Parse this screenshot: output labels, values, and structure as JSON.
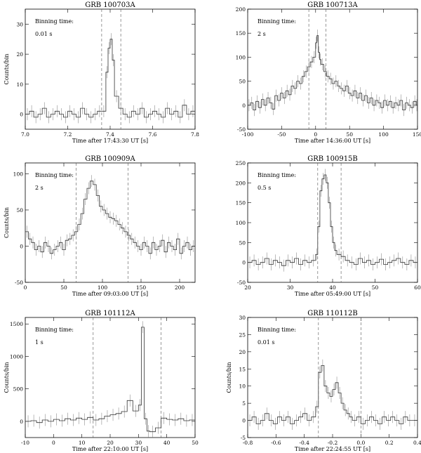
{
  "chart_data": [
    {
      "type": "line",
      "title": "GRB 100703A",
      "xlabel": "Time after 17:43:30 UT [s]",
      "ylabel": "Counts/bin",
      "note_label": "Binning time:",
      "note_value": "0.01 s",
      "xlim": [
        7.0,
        7.8
      ],
      "ylim": [
        -5,
        35
      ],
      "xticks": [
        7.0,
        7.2,
        7.4,
        7.6,
        7.8
      ],
      "yticks": [
        0,
        10,
        20,
        30
      ],
      "dashed_x": [
        7.36,
        7.45
      ],
      "x": [
        7.0,
        7.02,
        7.04,
        7.06,
        7.08,
        7.1,
        7.12,
        7.14,
        7.16,
        7.18,
        7.2,
        7.22,
        7.24,
        7.26,
        7.28,
        7.3,
        7.32,
        7.34,
        7.36,
        7.38,
        7.39,
        7.4,
        7.41,
        7.42,
        7.44,
        7.46,
        7.48,
        7.5,
        7.52,
        7.54,
        7.56,
        7.58,
        7.6,
        7.62,
        7.64,
        7.66,
        7.68,
        7.7,
        7.72,
        7.74,
        7.76,
        7.78
      ],
      "y": [
        0,
        1,
        -1,
        0,
        2,
        -1,
        0,
        1,
        0,
        -1,
        1,
        0,
        -1,
        2,
        0,
        -1,
        0,
        1,
        1,
        14,
        22,
        25,
        18,
        6,
        2,
        0,
        -1,
        1,
        0,
        2,
        -1,
        0,
        1,
        0,
        -1,
        2,
        0,
        1,
        -1,
        3,
        0,
        1
      ]
    },
    {
      "type": "line",
      "title": "GRB 100713A",
      "xlabel": "Time after 14:36:00 UT [s]",
      "ylabel": "",
      "note_label": "Binning time:",
      "note_value": "2 s",
      "xlim": [
        -100,
        150
      ],
      "ylim": [
        -50,
        200
      ],
      "xticks": [
        -100,
        -50,
        0,
        50,
        100,
        150
      ],
      "yticks": [
        -50,
        0,
        50,
        100,
        150,
        200
      ],
      "dashed_x": [
        -10,
        15
      ],
      "x": [
        -100,
        -96,
        -92,
        -88,
        -84,
        -80,
        -76,
        -72,
        -68,
        -64,
        -60,
        -56,
        -52,
        -48,
        -44,
        -40,
        -36,
        -32,
        -28,
        -24,
        -20,
        -16,
        -12,
        -8,
        -4,
        0,
        2,
        4,
        6,
        8,
        12,
        16,
        20,
        24,
        28,
        32,
        36,
        40,
        44,
        48,
        52,
        56,
        60,
        64,
        68,
        72,
        76,
        80,
        84,
        88,
        92,
        96,
        100,
        104,
        108,
        112,
        116,
        120,
        124,
        128,
        132,
        136,
        140,
        144,
        148
      ],
      "y": [
        0,
        5,
        -10,
        8,
        -5,
        12,
        0,
        15,
        5,
        -8,
        20,
        10,
        25,
        15,
        30,
        22,
        40,
        35,
        50,
        45,
        60,
        70,
        80,
        90,
        100,
        130,
        145,
        110,
        95,
        85,
        70,
        60,
        55,
        45,
        50,
        40,
        35,
        30,
        40,
        25,
        20,
        30,
        15,
        25,
        10,
        20,
        5,
        15,
        0,
        10,
        5,
        -5,
        10,
        0,
        8,
        -5,
        5,
        0,
        10,
        -10,
        5,
        0,
        -5,
        8,
        0
      ]
    },
    {
      "type": "line",
      "title": "GRB 100909A",
      "xlabel": "Time after 09:03:00 UT [s]",
      "ylabel": "Counts/bin",
      "note_label": "Binning time:",
      "note_value": "2 s",
      "xlim": [
        0,
        220
      ],
      "ylim": [
        -50,
        115
      ],
      "xticks": [
        0,
        50,
        100,
        150,
        200
      ],
      "yticks": [
        -50,
        0,
        50,
        100
      ],
      "dashed_x": [
        66,
        133
      ],
      "x": [
        0,
        4,
        8,
        12,
        16,
        20,
        24,
        28,
        32,
        36,
        40,
        44,
        48,
        52,
        56,
        60,
        64,
        68,
        72,
        76,
        80,
        84,
        88,
        92,
        96,
        100,
        104,
        108,
        112,
        116,
        120,
        124,
        128,
        132,
        136,
        140,
        144,
        148,
        152,
        156,
        160,
        164,
        168,
        172,
        176,
        180,
        184,
        188,
        192,
        196,
        200,
        204,
        208,
        212,
        216
      ],
      "y": [
        20,
        10,
        5,
        -5,
        0,
        -8,
        5,
        0,
        -10,
        -5,
        0,
        5,
        -5,
        8,
        10,
        15,
        20,
        30,
        45,
        65,
        80,
        90,
        85,
        70,
        55,
        50,
        45,
        40,
        38,
        35,
        30,
        25,
        20,
        15,
        10,
        5,
        0,
        -5,
        5,
        0,
        -10,
        5,
        -5,
        0,
        8,
        -8,
        5,
        0,
        -5,
        10,
        -10,
        0,
        5,
        -5,
        0
      ]
    },
    {
      "type": "line",
      "title": "GRB 100915B",
      "xlabel": "Time after 05:49:00 UT [s]",
      "ylabel": "",
      "note_label": "Binning time:",
      "note_value": "0.5 s",
      "xlim": [
        20,
        60
      ],
      "ylim": [
        -50,
        250
      ],
      "xticks": [
        20,
        30,
        40,
        50,
        60
      ],
      "yticks": [
        -50,
        0,
        50,
        100,
        150,
        200,
        250
      ],
      "dashed_x": [
        36.5,
        42
      ],
      "x": [
        20,
        21,
        22,
        23,
        24,
        25,
        26,
        27,
        28,
        29,
        30,
        31,
        32,
        33,
        34,
        35,
        36,
        36.5,
        37,
        37.5,
        38,
        38.5,
        39,
        39.5,
        40,
        40.5,
        41,
        42,
        43,
        44,
        45,
        46,
        47,
        48,
        49,
        50,
        51,
        52,
        53,
        54,
        55,
        56,
        57,
        58,
        59
      ],
      "y": [
        0,
        5,
        -5,
        0,
        10,
        -5,
        5,
        0,
        -8,
        5,
        0,
        10,
        -5,
        5,
        0,
        5,
        20,
        90,
        180,
        210,
        220,
        200,
        150,
        90,
        50,
        30,
        20,
        15,
        5,
        0,
        -5,
        10,
        0,
        5,
        -5,
        0,
        8,
        -5,
        0,
        5,
        10,
        0,
        -5,
        5,
        0
      ]
    },
    {
      "type": "line",
      "title": "GRB 101112A",
      "xlabel": "Time after 22:10:00 UT [s]",
      "ylabel": "Counts/bin",
      "note_label": "Binning time:",
      "note_value": "1 s",
      "xlim": [
        -10,
        50
      ],
      "ylim": [
        -250,
        1600
      ],
      "xticks": [
        -10,
        0,
        10,
        20,
        30,
        40,
        50
      ],
      "yticks": [
        0,
        500,
        1000,
        1500
      ],
      "dashed_x": [
        14,
        38
      ],
      "x": [
        -10,
        -8,
        -6,
        -4,
        -2,
        0,
        2,
        4,
        6,
        8,
        10,
        12,
        14,
        16,
        18,
        20,
        22,
        24,
        26,
        28,
        30,
        31,
        32,
        33,
        34,
        36,
        38,
        40,
        42,
        44,
        46,
        48
      ],
      "y": [
        0,
        10,
        -20,
        20,
        0,
        30,
        10,
        40,
        20,
        50,
        30,
        60,
        20,
        40,
        80,
        100,
        120,
        150,
        320,
        160,
        250,
        1450,
        40,
        -150,
        -160,
        -100,
        50,
        30,
        20,
        40,
        10,
        20
      ]
    },
    {
      "type": "line",
      "title": "GRB 110112B",
      "xlabel": "Time after 22:24:55 UT [s]",
      "ylabel": "Counts/bin",
      "note_label": "Binning time:",
      "note_value": "0.01 s",
      "xlim": [
        -0.8,
        0.4
      ],
      "ylim": [
        -5,
        30
      ],
      "xticks": [
        -0.8,
        -0.6,
        -0.4,
        -0.2,
        0.0,
        0.2,
        0.4
      ],
      "yticks": [
        -5,
        0,
        5,
        10,
        15,
        20,
        25,
        30
      ],
      "dashed_x": [
        -0.3,
        0.0
      ],
      "x": [
        -0.8,
        -0.77,
        -0.74,
        -0.71,
        -0.68,
        -0.65,
        -0.62,
        -0.59,
        -0.56,
        -0.53,
        -0.5,
        -0.47,
        -0.44,
        -0.41,
        -0.38,
        -0.35,
        -0.32,
        -0.3,
        -0.28,
        -0.26,
        -0.24,
        -0.22,
        -0.2,
        -0.18,
        -0.16,
        -0.14,
        -0.12,
        -0.1,
        -0.08,
        -0.06,
        -0.03,
        0.0,
        0.03,
        0.06,
        0.09,
        0.12,
        0.15,
        0.18,
        0.21,
        0.24,
        0.27,
        0.3,
        0.33,
        0.36
      ],
      "y": [
        0,
        1,
        -1,
        0,
        2,
        0,
        -1,
        1,
        0,
        1,
        -1,
        0,
        1,
        2,
        0,
        1,
        4,
        14,
        16,
        10,
        8,
        7,
        9,
        11,
        8,
        5,
        3,
        2,
        1,
        0,
        1,
        -1,
        0,
        1,
        0,
        -1,
        1,
        0,
        1,
        0,
        -1,
        1,
        0,
        0
      ]
    }
  ]
}
